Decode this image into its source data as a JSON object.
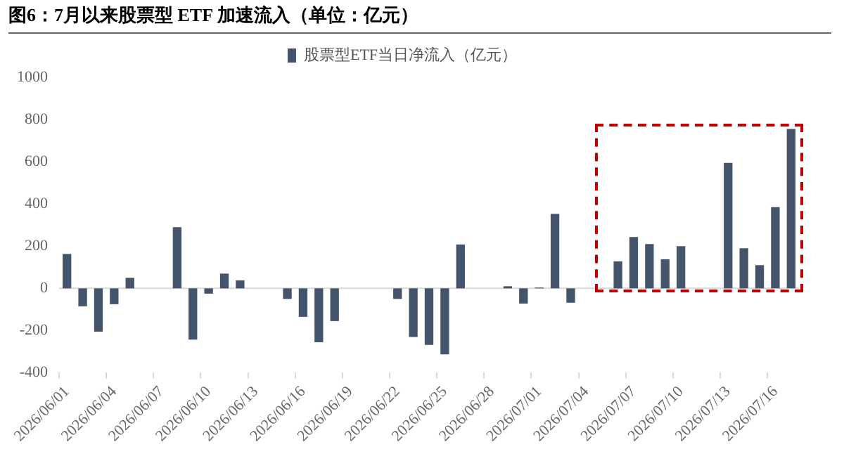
{
  "chart_data": {
    "type": "bar",
    "title": "图6：7月以来股票型 ETF 加速流入（单位：亿元）",
    "categories": [
      "2026/06/01",
      null,
      null,
      "2026/06/04",
      null,
      null,
      "2026/06/07",
      null,
      null,
      "2026/06/10",
      null,
      null,
      "2026/06/13",
      null,
      null,
      "2026/06/16",
      null,
      null,
      "2026/06/19",
      null,
      null,
      "2026/06/22",
      null,
      null,
      "2026/06/25",
      null,
      null,
      "2026/06/28",
      null,
      null,
      "2026/07/01",
      null,
      null,
      "2026/07/04",
      null,
      null,
      "2026/07/07",
      null,
      null,
      "2026/07/10",
      null,
      null,
      "2026/07/13",
      null,
      null,
      "2026/07/16",
      null
    ],
    "series": [
      {
        "name": "股票型ETF当日净流入（亿元）",
        "color": "#44546a",
        "values": [
          163,
          -85,
          -205,
          -75,
          50,
          null,
          null,
          290,
          -243,
          -25,
          70,
          38,
          null,
          null,
          -50,
          -135,
          -255,
          -155,
          null,
          null,
          null,
          -50,
          -230,
          -268,
          -313,
          208,
          null,
          null,
          10,
          -72,
          4,
          353,
          -68,
          null,
          null,
          128,
          243,
          210,
          138,
          200,
          null,
          null,
          595,
          190,
          110,
          385,
          755
        ]
      }
    ],
    "ylim": [
      -400,
      1000
    ],
    "yticks": [
      -400,
      -200,
      0,
      200,
      400,
      600,
      800,
      1000
    ],
    "grid": false,
    "ref_lines": [
      {
        "axis": "y",
        "value": 0,
        "color": "#d9d9d9"
      }
    ],
    "legend": "top"
  }
}
